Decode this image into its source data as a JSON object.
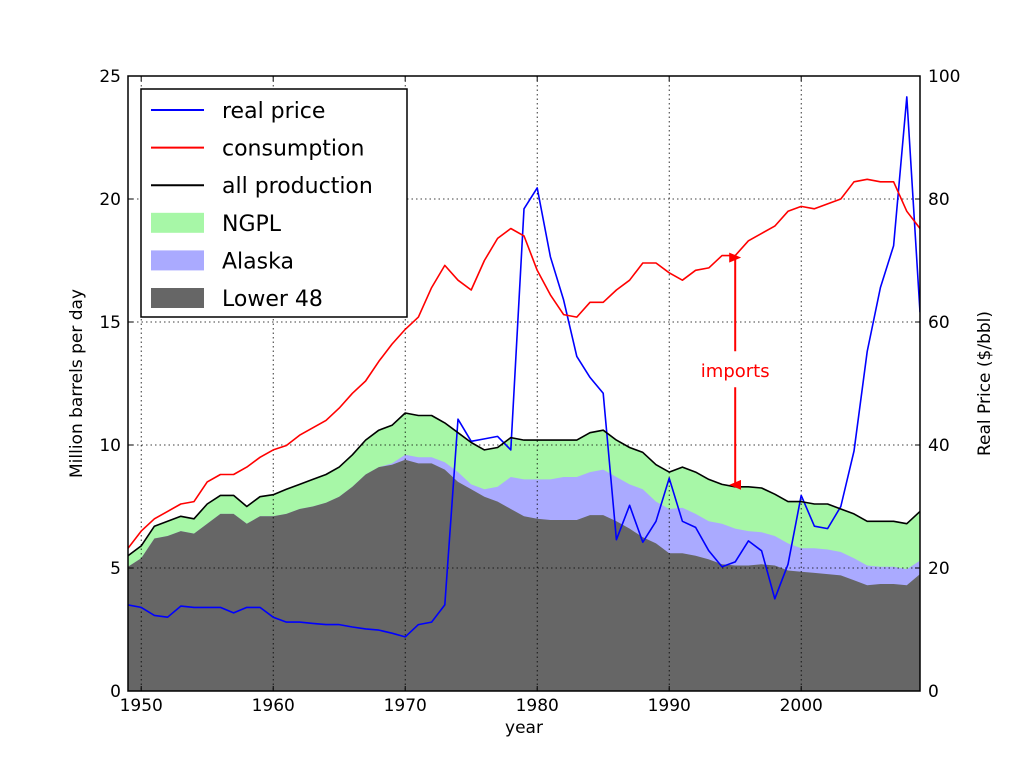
{
  "chart_data": {
    "type": "line",
    "xlabel": "year",
    "ylabel": "Million barrels per day",
    "y2label": "Real Price ($/bbl)",
    "xlim": [
      1949,
      2009
    ],
    "ylim": [
      0,
      25
    ],
    "y2lim": [
      0,
      100
    ],
    "grid": true,
    "legend_position": "top-left",
    "x_ticks": [
      1950,
      1960,
      1970,
      1980,
      1990,
      2000
    ],
    "y_ticks": [
      0,
      5,
      10,
      15,
      20,
      25
    ],
    "y2_ticks": [
      0,
      20,
      40,
      60,
      80,
      100
    ],
    "years": [
      1949,
      1950,
      1951,
      1952,
      1953,
      1954,
      1955,
      1956,
      1957,
      1958,
      1959,
      1960,
      1961,
      1962,
      1963,
      1964,
      1965,
      1966,
      1967,
      1968,
      1969,
      1970,
      1971,
      1972,
      1973,
      1974,
      1975,
      1976,
      1977,
      1978,
      1979,
      1980,
      1981,
      1982,
      1983,
      1984,
      1985,
      1986,
      1987,
      1988,
      1989,
      1990,
      1991,
      1992,
      1993,
      1994,
      1995,
      1996,
      1997,
      1998,
      1999,
      2000,
      2001,
      2002,
      2003,
      2004,
      2005,
      2006,
      2007,
      2008,
      2009
    ],
    "series": [
      {
        "name": "real price",
        "axis": "right",
        "color": "#0000ff",
        "kind": "line",
        "values": [
          14,
          13.6,
          12.3,
          12,
          13.8,
          13.6,
          13.6,
          13.6,
          12.7,
          13.6,
          13.6,
          12,
          11.2,
          11.2,
          11,
          10.8,
          10.8,
          10.4,
          10.1,
          9.9,
          9.4,
          8.8,
          10.8,
          11.2,
          14,
          44.2,
          40.6,
          41,
          41.4,
          39.2,
          78.4,
          81.8,
          70.6,
          63.6,
          54.4,
          51,
          48.4,
          24.6,
          30.2,
          24.2,
          27.6,
          34.6,
          27.6,
          26.6,
          22.8,
          20.2,
          21,
          24.4,
          22.8,
          15,
          20.6,
          31.8,
          26.8,
          26.4,
          30,
          39,
          55.2,
          65.6,
          72.4,
          96.6,
          61.6
        ]
      },
      {
        "name": "consumption",
        "axis": "left",
        "color": "#ff0000",
        "kind": "line",
        "values": [
          5.8,
          6.5,
          7,
          7.3,
          7.6,
          7.7,
          8.5,
          8.8,
          8.8,
          9.1,
          9.5,
          9.8,
          9.98,
          10.4,
          10.7,
          11,
          11.5,
          12.1,
          12.6,
          13.4,
          14.1,
          14.7,
          15.2,
          16.4,
          17.3,
          16.7,
          16.3,
          17.5,
          18.4,
          18.8,
          18.5,
          17.1,
          16.1,
          15.3,
          15.2,
          15.8,
          15.8,
          16.3,
          16.7,
          17.4,
          17.4,
          17,
          16.7,
          17.1,
          17.2,
          17.7,
          17.7,
          18.3,
          18.6,
          18.9,
          19.5,
          19.7,
          19.6,
          19.8,
          20,
          20.7,
          20.8,
          20.7,
          20.7,
          19.5,
          18.8
        ]
      },
      {
        "name": "all production",
        "axis": "left",
        "color": "#000000",
        "kind": "line",
        "values": [
          5.5,
          5.9,
          6.7,
          6.9,
          7.1,
          7,
          7.6,
          7.95,
          7.95,
          7.5,
          7.9,
          7.98,
          8.2,
          8.4,
          8.6,
          8.8,
          9.1,
          9.6,
          10.2,
          10.6,
          10.8,
          11.3,
          11.2,
          11.2,
          10.9,
          10.5,
          10.1,
          9.8,
          9.9,
          10.3,
          10.2,
          10.2,
          10.2,
          10.2,
          10.2,
          10.5,
          10.6,
          10.2,
          9.9,
          9.7,
          9.2,
          8.9,
          9.1,
          8.9,
          8.6,
          8.4,
          8.3,
          8.3,
          8.25,
          8,
          7.7,
          7.7,
          7.6,
          7.6,
          7.4,
          7.2,
          6.9,
          6.9,
          6.9,
          6.8,
          7.3
        ]
      },
      {
        "name": "NGPL",
        "axis": "left",
        "color": "#a7f7a7",
        "kind": "area",
        "values": [
          5.5,
          5.9,
          6.7,
          6.9,
          7.1,
          7,
          7.6,
          7.95,
          7.95,
          7.5,
          7.9,
          7.98,
          8.2,
          8.4,
          8.6,
          8.8,
          9.1,
          9.6,
          10.2,
          10.6,
          10.8,
          11.3,
          11.2,
          11.2,
          10.9,
          10.5,
          10.1,
          9.8,
          9.9,
          10.3,
          10.2,
          10.2,
          10.2,
          10.2,
          10.2,
          10.5,
          10.6,
          10.2,
          9.9,
          9.7,
          9.2,
          8.9,
          9.1,
          8.9,
          8.6,
          8.4,
          8.3,
          8.3,
          8.25,
          8,
          7.7,
          7.7,
          7.6,
          7.6,
          7.4,
          7.2,
          6.9,
          6.9,
          6.9,
          6.8,
          7.3
        ]
      },
      {
        "name": "Alaska",
        "axis": "left",
        "color": "#aaaaff",
        "kind": "area",
        "values": [
          5.05,
          5.4,
          6.2,
          6.3,
          6.5,
          6.4,
          6.8,
          7.2,
          7.2,
          6.8,
          7.1,
          7.1,
          7.2,
          7.4,
          7.5,
          7.65,
          7.9,
          8.3,
          8.8,
          9.1,
          9.25,
          9.6,
          9.5,
          9.5,
          9.3,
          8.9,
          8.4,
          8.2,
          8.3,
          8.7,
          8.6,
          8.6,
          8.6,
          8.7,
          8.7,
          8.9,
          9,
          8.7,
          8.4,
          8.2,
          7.7,
          7.4,
          7.45,
          7.2,
          6.9,
          6.8,
          6.6,
          6.5,
          6.45,
          6.3,
          6,
          5.8,
          5.8,
          5.75,
          5.65,
          5.4,
          5.1,
          5.05,
          5.05,
          4.95,
          5.3
        ]
      },
      {
        "name": "Lower 48",
        "axis": "left",
        "color": "#666666",
        "kind": "area",
        "values": [
          5.05,
          5.4,
          6.2,
          6.3,
          6.5,
          6.4,
          6.8,
          7.2,
          7.2,
          6.8,
          7.1,
          7.1,
          7.2,
          7.4,
          7.5,
          7.65,
          7.9,
          8.3,
          8.8,
          9.1,
          9.2,
          9.4,
          9.25,
          9.25,
          9,
          8.5,
          8.2,
          7.9,
          7.7,
          7.4,
          7.1,
          7,
          6.95,
          6.95,
          6.95,
          7.15,
          7.15,
          6.9,
          6.6,
          6.25,
          6,
          5.6,
          5.6,
          5.5,
          5.35,
          5.15,
          5.1,
          5.1,
          5.15,
          5.1,
          4.9,
          4.85,
          4.8,
          4.75,
          4.7,
          4.5,
          4.3,
          4.35,
          4.35,
          4.3,
          4.75
        ]
      }
    ],
    "annotation": {
      "text": "imports",
      "x": 1995,
      "y_top": 17.7,
      "y_bottom": 8.3,
      "color": "#ff0000"
    }
  }
}
